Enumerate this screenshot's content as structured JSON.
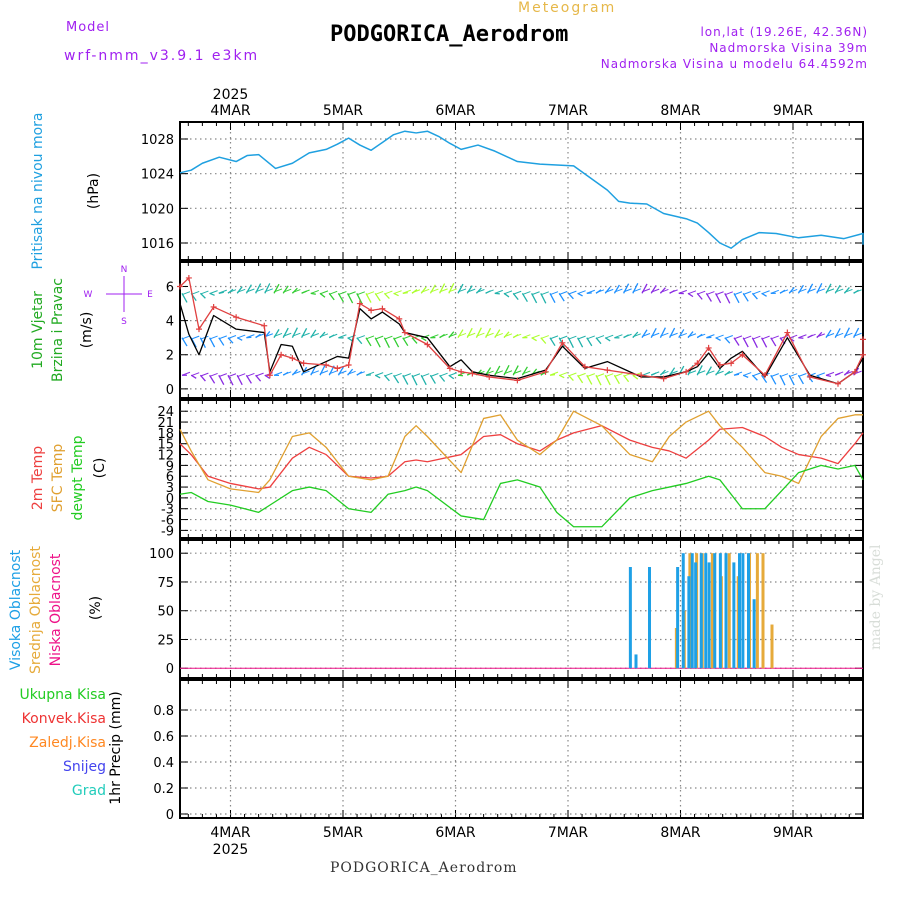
{
  "header": {
    "model_label": "Model",
    "model_name": "wrf-nmm_v3.9.1 e3km",
    "meteogram_label": "Meteogram",
    "station_title": "PODGORICA_Aerodrom",
    "lonlat": "lon,lat (19.26E, 42.36N)",
    "altitude": "Nadmorska Visina 39m",
    "model_altitude": "Nadmorska Visina u modelu 64.4592m",
    "footer_station": "PODGORICA_Aerodrom",
    "made_by": "made by Angel"
  },
  "colors": {
    "pressure": "#1fa0e0",
    "temp2m": "#ee4040",
    "sfc": "#e0a030",
    "dew": "#22cc22",
    "cloud_high": "#1ea0e6",
    "cloud_mid": "#e6aa3a",
    "cloud_low": "#ee1188",
    "wind_obs": "#e04040",
    "grid": "#888888",
    "purple": "#a020f0"
  },
  "chart_data": [
    {
      "type": "line",
      "name": "pressure",
      "xlabel_dates": [
        "4MAR",
        "5MAR",
        "6MAR",
        "7MAR",
        "8MAR",
        "9MAR"
      ],
      "year": "2025",
      "ylabel_title": "Pritisak na nivou mora",
      "ylabel_unit": "(hPa)",
      "yticks": [
        1016,
        1020,
        1024,
        1028
      ],
      "ylim": [
        1014.5,
        1029.5
      ],
      "xlim_days": [
        0,
        6.23
      ],
      "x": [
        0,
        0.1,
        0.2,
        0.35,
        0.5,
        0.6,
        0.7,
        0.85,
        1.0,
        1.15,
        1.3,
        1.4,
        1.5,
        1.6,
        1.7,
        1.8,
        1.9,
        2.0,
        2.1,
        2.2,
        2.3,
        2.4,
        2.5,
        2.65,
        2.8,
        3.0,
        3.2,
        3.5,
        3.8,
        3.9,
        4.0,
        4.15,
        4.3,
        4.5,
        4.6,
        4.7,
        4.8,
        4.9,
        5.0,
        5.15,
        5.3,
        5.5,
        5.7,
        5.9,
        6.1,
        6.23
      ],
      "values": [
        1024.1,
        1024.4,
        1025.2,
        1025.9,
        1025.4,
        1026.1,
        1026.2,
        1024.6,
        1025.2,
        1026.4,
        1026.8,
        1027.4,
        1028.1,
        1027.3,
        1026.7,
        1027.6,
        1028.5,
        1028.9,
        1028.7,
        1028.9,
        1028.3,
        1027.5,
        1026.8,
        1027.3,
        1026.6,
        1025.4,
        1025.1,
        1024.9,
        1022.1,
        1020.8,
        1020.6,
        1020.5,
        1019.4,
        1018.8,
        1018.3,
        1017.2,
        1016.0,
        1015.4,
        1016.4,
        1017.2,
        1017.1,
        1016.6,
        1016.9,
        1016.5,
        1017.1,
        1015.8
      ]
    },
    {
      "type": "line",
      "name": "wind",
      "ylabel_title1": "10m Vjetar",
      "ylabel_title2": "Brzina i Pravac",
      "ylabel_unit": "(m/s)",
      "compass": {
        "n": "N",
        "e": "E",
        "w": "W",
        "s": "S"
      },
      "yticks": [
        0,
        2,
        4,
        6
      ],
      "ylim": [
        -0.3,
        7.2
      ],
      "series": [
        {
          "name": "model wind speed",
          "x": [
            0,
            0.08,
            0.17,
            0.3,
            0.5,
            0.75,
            0.8,
            0.9,
            1.0,
            1.1,
            1.3,
            1.4,
            1.5,
            1.6,
            1.7,
            1.8,
            1.95,
            2.0,
            2.2,
            2.4,
            2.5,
            2.6,
            2.75,
            3.0,
            3.25,
            3.4,
            3.6,
            3.8,
            4.1,
            4.3,
            4.5,
            4.6,
            4.7,
            4.8,
            4.9,
            5.0,
            5.2,
            5.4,
            5.6,
            5.85,
            6.0,
            6.1,
            6.2
          ],
          "values": [
            5.0,
            3.2,
            2.0,
            4.3,
            3.5,
            3.3,
            1.0,
            2.6,
            2.5,
            1.0,
            1.6,
            1.9,
            1.8,
            4.7,
            4.1,
            4.5,
            3.8,
            3.3,
            3.0,
            1.3,
            1.7,
            1.0,
            0.8,
            0.6,
            1.1,
            2.5,
            1.2,
            1.6,
            0.7,
            0.7,
            1.0,
            1.3,
            2.1,
            1.2,
            1.8,
            2.2,
            0.7,
            3.0,
            0.8,
            0.3,
            1.0,
            1.8,
            3.0
          ]
        },
        {
          "name": "observed wind speed",
          "x": [
            0,
            0.08,
            0.17,
            0.3,
            0.5,
            0.75,
            0.8,
            0.9,
            1.0,
            1.1,
            1.3,
            1.4,
            1.5,
            1.6,
            1.7,
            1.8,
            1.95,
            2.0,
            2.2,
            2.4,
            2.5,
            2.6,
            2.75,
            3.0,
            3.25,
            3.4,
            3.6,
            3.8,
            4.1,
            4.3,
            4.5,
            4.6,
            4.7,
            4.8,
            4.9,
            5.0,
            5.2,
            5.4,
            5.6,
            5.85,
            6.0,
            6.1,
            6.2
          ],
          "values": [
            6.0,
            6.5,
            3.5,
            4.8,
            4.2,
            3.7,
            0.8,
            2.0,
            1.8,
            1.5,
            1.4,
            1.2,
            1.4,
            5.0,
            4.6,
            4.7,
            4.1,
            3.3,
            2.6,
            1.2,
            1.0,
            0.9,
            0.7,
            0.5,
            1.0,
            2.7,
            1.3,
            1.1,
            0.8,
            0.6,
            1.0,
            1.5,
            2.4,
            1.4,
            1.5,
            2.0,
            0.8,
            3.3,
            0.7,
            0.3,
            1.0,
            2.0,
            2.9
          ]
        }
      ],
      "barb_rows": [
        0.8,
        3.0,
        5.6
      ]
    },
    {
      "type": "line",
      "name": "temperature",
      "ylabel_t2m": "2m Temp",
      "ylabel_sfc": "SFC Temp",
      "ylabel_dew": "dewpt Temp",
      "ylabel_unit": "(C)",
      "yticks": [
        -9,
        -6,
        -3,
        0,
        3,
        6,
        9,
        12,
        15,
        18,
        21,
        24
      ],
      "ylim": [
        -10,
        26
      ],
      "series": [
        {
          "name": "2m Temp",
          "x": [
            0,
            0.1,
            0.25,
            0.45,
            0.7,
            0.8,
            1.0,
            1.15,
            1.3,
            1.5,
            1.7,
            1.85,
            2.0,
            2.1,
            2.2,
            2.5,
            2.7,
            2.85,
            3.0,
            3.2,
            3.35,
            3.5,
            3.75,
            4.0,
            4.2,
            4.35,
            4.5,
            4.7,
            4.8,
            5.0,
            5.2,
            5.35,
            5.5,
            5.7,
            5.85,
            6.0,
            6.23
          ],
          "values": [
            15,
            12,
            6,
            4,
            2.5,
            3,
            11,
            14,
            12,
            6,
            5.5,
            6,
            10,
            10.5,
            10,
            12,
            17,
            17.5,
            15,
            13,
            16,
            18,
            20,
            16,
            14,
            13,
            11,
            16,
            19,
            19.5,
            17,
            14,
            12,
            11,
            9.5,
            15,
            18
          ]
        },
        {
          "name": "SFC Temp",
          "x": [
            0,
            0.1,
            0.25,
            0.45,
            0.7,
            0.8,
            1.0,
            1.15,
            1.3,
            1.5,
            1.7,
            1.85,
            2.0,
            2.1,
            2.2,
            2.5,
            2.7,
            2.85,
            3.0,
            3.2,
            3.35,
            3.5,
            3.75,
            4.0,
            4.2,
            4.35,
            4.5,
            4.7,
            4.8,
            5.0,
            5.2,
            5.35,
            5.5,
            5.7,
            5.85,
            6.0,
            6.23
          ],
          "values": [
            19,
            13,
            5,
            2.5,
            1.5,
            5,
            17,
            18,
            14,
            6,
            5,
            6,
            17,
            20,
            17,
            7,
            22,
            23,
            16,
            12,
            16,
            24,
            20,
            12,
            10,
            17,
            21,
            24,
            20,
            14,
            7,
            6,
            4,
            17,
            22,
            23,
            23
          ]
        },
        {
          "name": "dewpt Temp",
          "x": [
            0,
            0.1,
            0.25,
            0.45,
            0.7,
            0.8,
            1.0,
            1.15,
            1.3,
            1.5,
            1.7,
            1.85,
            2.0,
            2.1,
            2.2,
            2.5,
            2.7,
            2.85,
            3.0,
            3.2,
            3.35,
            3.5,
            3.75,
            4.0,
            4.2,
            4.35,
            4.5,
            4.7,
            4.8,
            5.0,
            5.2,
            5.35,
            5.5,
            5.7,
            5.85,
            6.0,
            6.23
          ],
          "values": [
            1,
            1.5,
            -1,
            -2,
            -4,
            -2,
            2,
            3,
            2,
            -3,
            -4,
            1,
            2,
            3,
            2,
            -5,
            -6,
            4,
            5,
            3,
            -4,
            -8,
            -8,
            0,
            2,
            3,
            4,
            6,
            5,
            -3,
            -3,
            2,
            7,
            9,
            8,
            9,
            5
          ]
        }
      ]
    },
    {
      "type": "bar",
      "name": "cloud cover",
      "ylabel_high": "Visoka Oblacnost",
      "ylabel_mid": "Srednja Oblacnost",
      "ylabel_low": "Niska Oblacnost",
      "ylabel_unit": "(%)",
      "yticks": [
        0,
        25,
        50,
        75,
        100
      ],
      "ylim": [
        -5,
        108
      ],
      "high_x": [
        4.0,
        4.05,
        4.17,
        4.42,
        4.47,
        4.52,
        4.55,
        4.58,
        4.63,
        4.67,
        4.7,
        4.75,
        4.8,
        4.85,
        4.92,
        4.97,
        5.0,
        5.05,
        5.1
      ],
      "high_values": [
        88,
        12,
        88,
        88,
        100,
        80,
        100,
        92,
        100,
        100,
        92,
        100,
        100,
        100,
        92,
        100,
        100,
        100,
        60
      ],
      "mid_x": [
        4.4,
        4.47,
        4.52,
        4.58,
        4.63,
        4.72,
        4.8,
        4.87,
        4.95,
        5.05,
        5.12,
        5.17,
        5.25
      ],
      "mid_values": [
        35,
        50,
        100,
        100,
        100,
        100,
        80,
        100,
        80,
        100,
        100,
        100,
        38
      ]
    },
    {
      "type": "bar",
      "name": "precipitation",
      "legend": [
        "Ukupna Kisa",
        "Konvek.Kisa",
        "Zaledj.Kisa",
        "Snijeg",
        "Grad"
      ],
      "legend_colors": [
        "#22cc22",
        "#ee3333",
        "#ff8822",
        "#4444ee",
        "#22ccbb"
      ],
      "ylabel_unit": "1hr Precip (mm)",
      "yticks": [
        0,
        0.2,
        0.4,
        0.6,
        0.8
      ],
      "yticklabels": [
        "0",
        "0.2",
        "0.4",
        "0.6",
        "0.8"
      ],
      "ylim": [
        0,
        1.0
      ],
      "values": []
    }
  ]
}
